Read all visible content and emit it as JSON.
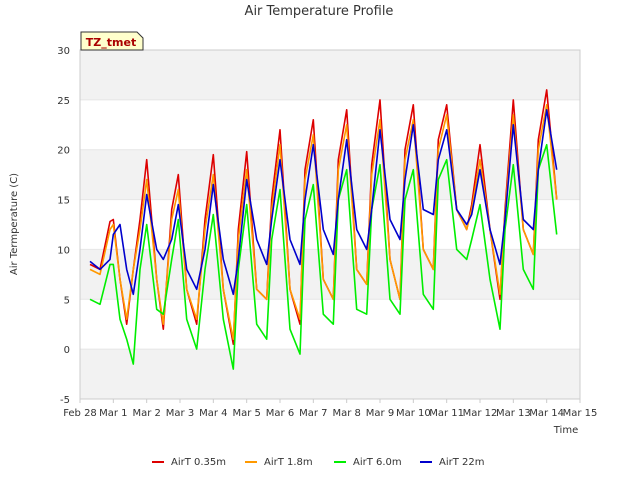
{
  "chart_data": {
    "type": "line",
    "title": "Air Temperature Profile",
    "xlabel": "Time",
    "ylabel": "Air Termperature (C)",
    "ylim": [
      -5,
      30
    ],
    "yticks": [
      -5,
      0,
      5,
      10,
      15,
      20,
      25,
      30
    ],
    "xlim": [
      0,
      15
    ],
    "xticks": [
      0,
      1,
      2,
      3,
      4,
      5,
      6,
      7,
      8,
      9,
      10,
      11,
      12,
      13,
      14,
      15
    ],
    "xtick_labels": [
      "Feb 28",
      "Mar 1",
      "Mar 2",
      "Mar 3",
      "Mar 4",
      "Mar 5",
      "Mar 6",
      "Mar 7",
      "Mar 8",
      "Mar 9",
      "Mar 10",
      "Mar 11",
      "Mar 12",
      "Mar 13",
      "Mar 14",
      "Mar 15"
    ],
    "x_units": "days since Feb 28 00:00",
    "site_label": "TZ_tmet",
    "legend_position": "bottom",
    "banding": "alternating horizontal bands",
    "series": [
      {
        "name": "AirT 0.35m",
        "color": "#dd0000",
        "x": [
          0.3,
          0.6,
          0.9,
          1.0,
          1.2,
          1.4,
          1.6,
          1.8,
          2.0,
          2.3,
          2.5,
          2.75,
          2.95,
          3.2,
          3.5,
          3.75,
          4.0,
          4.3,
          4.6,
          4.75,
          5.0,
          5.3,
          5.6,
          5.75,
          6.0,
          6.3,
          6.6,
          6.75,
          7.0,
          7.3,
          7.6,
          7.75,
          8.0,
          8.3,
          8.6,
          8.75,
          9.0,
          9.3,
          9.6,
          9.75,
          10.0,
          10.3,
          10.6,
          10.75,
          11.0,
          11.3,
          11.6,
          11.75,
          12.0,
          12.3,
          12.6,
          12.75,
          13.0,
          13.3,
          13.6,
          13.75,
          14.0,
          14.3
        ],
        "y": [
          8.5,
          8.0,
          12.8,
          13.0,
          7.0,
          2.5,
          8.0,
          13.0,
          19.0,
          7.0,
          2.0,
          14.0,
          17.5,
          6.0,
          2.5,
          13.0,
          19.5,
          6.0,
          0.5,
          12.0,
          19.8,
          6.0,
          5.0,
          15.0,
          22.0,
          6.0,
          2.5,
          18.0,
          23.0,
          7.0,
          5.0,
          19.0,
          24.0,
          8.0,
          6.5,
          18.5,
          25.0,
          9.0,
          5.0,
          20.0,
          24.5,
          10.0,
          8.0,
          21.0,
          24.5,
          14.0,
          12.0,
          14.5,
          20.5,
          12.0,
          5.0,
          14.0,
          25.0,
          12.0,
          9.5,
          21.0,
          26.0,
          15.0
        ]
      },
      {
        "name": "AirT 1.8m",
        "color": "#ff9900",
        "x": [
          0.3,
          0.6,
          0.9,
          1.0,
          1.2,
          1.4,
          1.6,
          1.8,
          2.0,
          2.3,
          2.5,
          2.75,
          2.95,
          3.2,
          3.5,
          3.75,
          4.0,
          4.3,
          4.6,
          4.75,
          5.0,
          5.3,
          5.6,
          5.75,
          6.0,
          6.3,
          6.6,
          6.75,
          7.0,
          7.3,
          7.6,
          7.75,
          8.0,
          8.3,
          8.6,
          8.75,
          9.0,
          9.3,
          9.6,
          9.75,
          10.0,
          10.3,
          10.6,
          10.75,
          11.0,
          11.3,
          11.6,
          11.75,
          12.0,
          12.3,
          12.6,
          12.75,
          13.0,
          13.3,
          13.6,
          13.75,
          14.0,
          14.3
        ],
        "y": [
          8.0,
          7.5,
          12.0,
          12.5,
          7.0,
          3.0,
          8.0,
          12.0,
          17.0,
          7.0,
          2.5,
          13.0,
          16.0,
          6.0,
          3.0,
          12.0,
          17.5,
          6.0,
          1.0,
          11.0,
          18.0,
          6.0,
          5.0,
          14.0,
          20.5,
          6.0,
          3.0,
          17.0,
          21.5,
          7.0,
          5.0,
          18.0,
          22.5,
          8.0,
          6.5,
          17.5,
          23.0,
          9.0,
          5.0,
          19.0,
          23.0,
          10.0,
          8.0,
          20.0,
          23.5,
          14.0,
          12.0,
          14.0,
          19.0,
          12.0,
          5.5,
          13.5,
          23.5,
          12.0,
          9.5,
          20.0,
          24.5,
          15.0
        ]
      },
      {
        "name": "AirT 6.0m",
        "color": "#00ee00",
        "x": [
          0.3,
          0.6,
          0.9,
          1.0,
          1.2,
          1.4,
          1.6,
          1.8,
          2.0,
          2.3,
          2.5,
          2.75,
          2.95,
          3.2,
          3.5,
          3.75,
          4.0,
          4.3,
          4.6,
          4.75,
          5.0,
          5.3,
          5.6,
          5.75,
          6.0,
          6.3,
          6.6,
          6.75,
          7.0,
          7.3,
          7.6,
          7.75,
          8.0,
          8.3,
          8.6,
          8.75,
          9.0,
          9.3,
          9.6,
          9.75,
          10.0,
          10.3,
          10.6,
          10.75,
          11.0,
          11.3,
          11.6,
          11.75,
          12.0,
          12.3,
          12.6,
          12.75,
          13.0,
          13.3,
          13.6,
          13.75,
          14.0,
          14.3
        ],
        "y": [
          5.0,
          4.5,
          8.5,
          8.5,
          3.0,
          1.0,
          -1.5,
          8.0,
          12.5,
          4.0,
          3.5,
          9.0,
          13.0,
          3.0,
          0.0,
          8.0,
          13.5,
          3.0,
          -2.0,
          8.0,
          14.5,
          2.5,
          1.0,
          11.0,
          16.0,
          2.0,
          -0.5,
          13.0,
          16.5,
          3.5,
          2.5,
          15.0,
          18.0,
          4.0,
          3.5,
          14.0,
          18.5,
          5.0,
          3.5,
          15.0,
          18.0,
          5.5,
          4.0,
          17.0,
          19.0,
          10.0,
          9.0,
          11.0,
          14.5,
          7.0,
          2.0,
          12.0,
          18.5,
          8.0,
          6.0,
          18.0,
          20.5,
          11.5
        ]
      },
      {
        "name": "AirT 22m",
        "color": "#0000cc",
        "x": [
          0.3,
          0.6,
          0.9,
          1.0,
          1.2,
          1.4,
          1.6,
          1.8,
          2.0,
          2.3,
          2.5,
          2.75,
          2.95,
          3.2,
          3.5,
          3.75,
          4.0,
          4.3,
          4.6,
          4.75,
          5.0,
          5.3,
          5.6,
          5.75,
          6.0,
          6.3,
          6.6,
          6.75,
          7.0,
          7.3,
          7.6,
          7.75,
          8.0,
          8.3,
          8.6,
          8.75,
          9.0,
          9.3,
          9.6,
          9.75,
          10.0,
          10.3,
          10.6,
          10.75,
          11.0,
          11.3,
          11.6,
          11.75,
          12.0,
          12.3,
          12.6,
          12.75,
          13.0,
          13.3,
          13.6,
          13.75,
          14.0,
          14.3
        ],
        "y": [
          8.8,
          8.0,
          9.0,
          11.5,
          12.5,
          8.0,
          5.5,
          10.0,
          15.5,
          10.0,
          9.0,
          11.0,
          14.5,
          8.0,
          6.0,
          10.0,
          16.5,
          9.0,
          5.5,
          9.0,
          17.0,
          11.0,
          8.5,
          13.0,
          19.0,
          11.0,
          8.5,
          15.0,
          20.5,
          12.0,
          9.5,
          15.0,
          21.0,
          12.0,
          10.0,
          14.0,
          22.0,
          13.0,
          11.0,
          17.0,
          22.5,
          14.0,
          13.5,
          19.0,
          22.0,
          14.0,
          12.5,
          13.5,
          18.0,
          12.0,
          8.5,
          13.0,
          22.5,
          13.0,
          12.0,
          18.0,
          24.0,
          18.0
        ]
      }
    ]
  }
}
